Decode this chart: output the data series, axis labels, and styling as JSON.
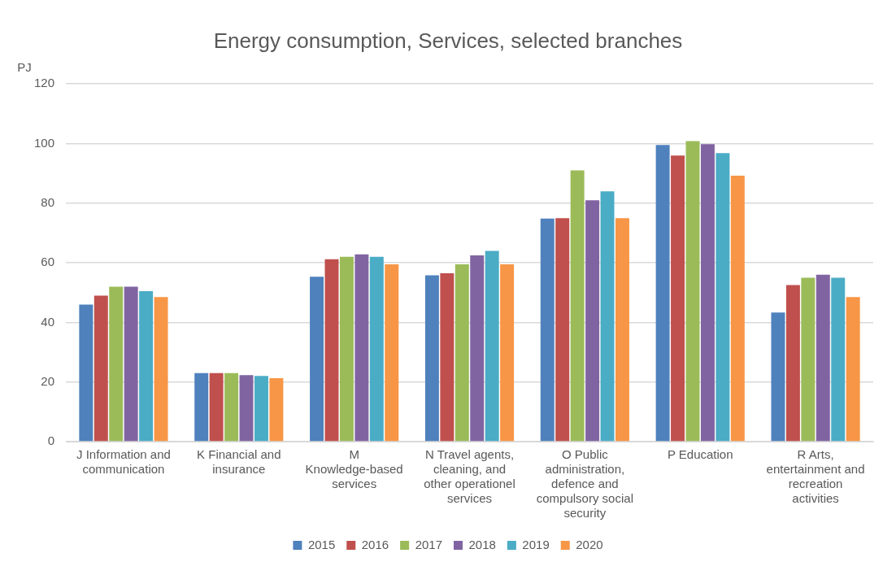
{
  "chart_data": {
    "type": "bar",
    "title": "Energy consumption, Services, selected branches",
    "ylabel": "PJ",
    "categories": [
      "J Information and communication",
      "K Financial and insurance",
      "M Knowledge-based services",
      "N Travel agents, cleaning, and other operationel services",
      "O Public administration, defence and compulsory social security",
      "P Education",
      "R Arts, entertainment and recreation activities"
    ],
    "series": [
      {
        "name": "2015",
        "color": "#4f81bd",
        "values": [
          46,
          23,
          55.3,
          55.8,
          74.8,
          99.5,
          43.3
        ]
      },
      {
        "name": "2016",
        "color": "#c0504d",
        "values": [
          49,
          23,
          61.2,
          56.5,
          75,
          96,
          52.5
        ]
      },
      {
        "name": "2017",
        "color": "#9bbb59",
        "values": [
          52,
          23,
          62,
          59.5,
          91,
          100.8,
          55
        ]
      },
      {
        "name": "2018",
        "color": "#8064a2",
        "values": [
          52,
          22.3,
          62.8,
          62.5,
          81,
          99.8,
          56
        ]
      },
      {
        "name": "2019",
        "color": "#4bacc6",
        "values": [
          50.5,
          22,
          62,
          64,
          84,
          96.8,
          55
        ]
      },
      {
        "name": "2020",
        "color": "#f79646",
        "values": [
          48.5,
          21.3,
          59.5,
          59.5,
          75,
          89.2,
          48.5
        ]
      }
    ],
    "ylim": [
      0,
      120
    ],
    "yticks": [
      0,
      20,
      40,
      60,
      80,
      100,
      120
    ],
    "grid": "y",
    "legend": "bottom"
  }
}
